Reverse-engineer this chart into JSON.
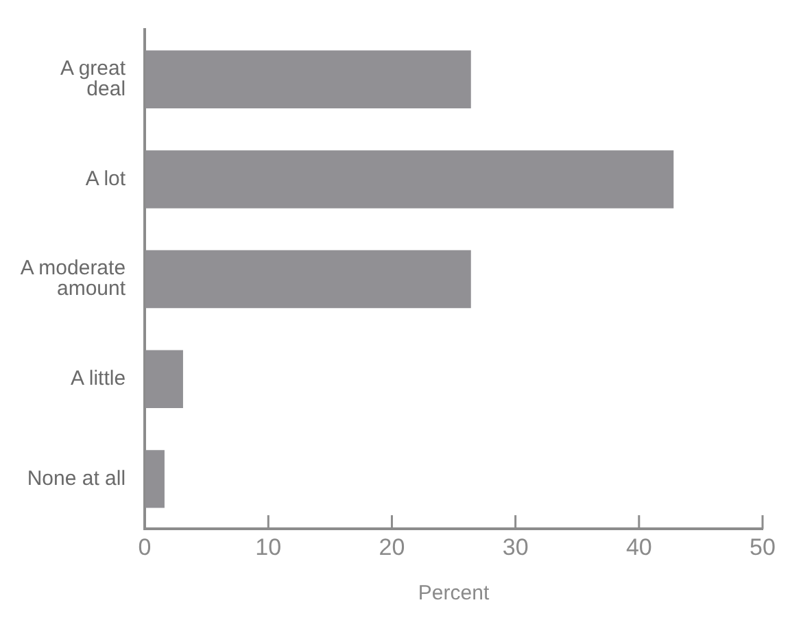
{
  "chart_data": {
    "type": "bar",
    "orientation": "horizontal",
    "xlabel": "Percent",
    "categories": [
      "A great deal",
      "A lot",
      "A moderate amount",
      "A little",
      "None at all"
    ],
    "values": [
      26.4,
      42.8,
      26.4,
      3.1,
      1.6
    ],
    "color": "#919094",
    "xlim": [
      0,
      50
    ],
    "xticks": [
      0,
      10,
      20,
      30,
      40,
      50
    ],
    "grid": false,
    "legend": false
  }
}
